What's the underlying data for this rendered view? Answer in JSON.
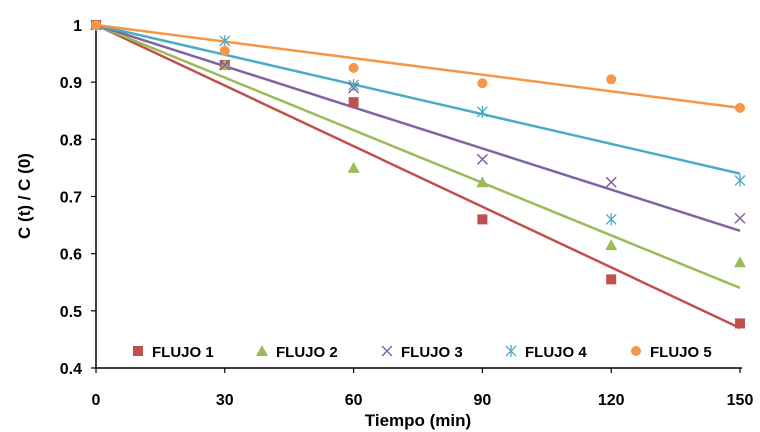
{
  "chart_data": {
    "type": "scatter",
    "title": "",
    "xlabel": "Tiempo (min)",
    "ylabel": "C (t) / C (0)",
    "xlim": [
      0,
      150
    ],
    "ylim": [
      0.4,
      1.0
    ],
    "xticks": [
      0,
      30,
      60,
      90,
      120,
      150
    ],
    "yticks": [
      0.4,
      0.5,
      0.6,
      0.7,
      0.8,
      0.9,
      1
    ],
    "xtick_labels": [
      "0",
      "30",
      "60",
      "90",
      "120",
      "150"
    ],
    "ytick_labels": [
      "0.4",
      "0.5",
      "0.6",
      "0.7",
      "0.8",
      "0.9",
      "1"
    ],
    "grid": false,
    "legend_position": "bottom-inside",
    "series": [
      {
        "name": "FLUJO 1",
        "marker": "square",
        "color": "#c0504d",
        "x": [
          0,
          30,
          60,
          90,
          120,
          150
        ],
        "y": [
          1.0,
          0.93,
          0.865,
          0.66,
          0.555,
          0.478
        ],
        "trend": [
          1.0,
          0.47
        ]
      },
      {
        "name": "FLUJO 2",
        "marker": "triangle",
        "color": "#9bbb59",
        "x": [
          0,
          30,
          60,
          90,
          120,
          150
        ],
        "y": [
          1.0,
          0.93,
          0.75,
          0.725,
          0.615,
          0.585
        ],
        "trend": [
          1.0,
          0.54
        ]
      },
      {
        "name": "FLUJO 3",
        "marker": "x",
        "color": "#8064a2",
        "x": [
          0,
          30,
          60,
          90,
          120,
          150
        ],
        "y": [
          1.0,
          0.93,
          0.89,
          0.765,
          0.725,
          0.662
        ],
        "trend": [
          1.0,
          0.64
        ]
      },
      {
        "name": "FLUJO 4",
        "marker": "asterisk",
        "color": "#4bacc6",
        "x": [
          0,
          30,
          60,
          90,
          120,
          150
        ],
        "y": [
          1.0,
          0.972,
          0.895,
          0.848,
          0.66,
          0.728
        ],
        "trend": [
          1.0,
          0.74
        ]
      },
      {
        "name": "FLUJO 5",
        "marker": "circle",
        "color": "#f79646",
        "x": [
          0,
          30,
          60,
          90,
          120,
          150
        ],
        "y": [
          1.0,
          0.955,
          0.925,
          0.898,
          0.905,
          0.855
        ],
        "trend": [
          1.0,
          0.855
        ]
      }
    ]
  }
}
